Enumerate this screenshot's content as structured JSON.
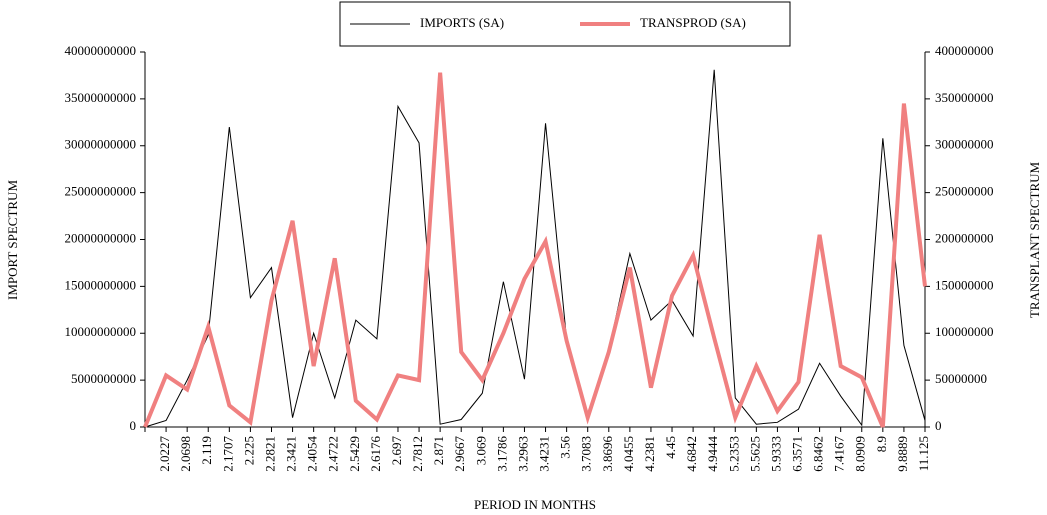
{
  "chart_data": {
    "type": "line",
    "x_label": "PERIOD IN MONTHS",
    "y_label": "IMPORT SPECTRUM",
    "y2_label": "TRANSPLANT SPECTRUM",
    "categories": [
      null,
      "2.0227",
      "2.0698",
      "2.119",
      "2.1707",
      "2.225",
      "2.2821",
      "2.3421",
      "2.4054",
      "2.4722",
      "2.5429",
      "2.6176",
      "2.697",
      "2.7812",
      "2.871",
      "2.9667",
      "3.069",
      "3.1786",
      "3.2963",
      "3.4231",
      "3.56",
      "3.7083",
      "3.8696",
      "4.0455",
      "4.2381",
      "4.45",
      "4.6842",
      "4.9444",
      "5.2353",
      "5.5625",
      "5.9333",
      "6.3571",
      "6.8462",
      "7.4167",
      "8.0909",
      "8.9",
      "9.8889",
      "11.125"
    ],
    "series": [
      {
        "name": "IMPORTS (SA)",
        "color": "#000000",
        "width": 1,
        "values": [
          0,
          700000000,
          5000000000,
          9800000000,
          32000000000,
          13800000000,
          17000000000,
          1000000000,
          10000000000,
          3100000000,
          11400000000,
          9400000000,
          34200000000,
          30300000000,
          300000000,
          800000000,
          3600000000,
          15500000000,
          5100000000,
          32400000000,
          9300000000,
          900000000,
          8200000000,
          18500000000,
          11400000000,
          13500000000,
          9700000000,
          38100000000,
          3100000000,
          300000000,
          500000000,
          1900000000,
          6800000000,
          3300000000,
          200000000,
          30800000000,
          8700000000,
          700000000
        ]
      },
      {
        "name": "TRANSPROD (SA)",
        "color": "#f08080",
        "width": 4,
        "axis": "y2",
        "values": [
          0,
          55000000,
          40000000,
          107000000,
          23000000,
          5000000,
          135000000,
          220000000,
          65000000,
          180000000,
          28000000,
          8000000,
          55000000,
          50000000,
          378000000,
          80000000,
          50000000,
          100000000,
          158000000,
          198000000,
          92000000,
          10000000,
          80000000,
          170000000,
          42000000,
          140000000,
          183000000,
          95000000,
          10000000,
          65000000,
          17000000,
          48000000,
          205000000,
          65000000,
          53000000,
          0,
          345000000,
          150000000
        ]
      }
    ],
    "ylim": [
      0,
      40000000000
    ],
    "yticks": [
      0,
      5000000000,
      10000000000,
      15000000000,
      20000000000,
      25000000000,
      30000000000,
      35000000000,
      40000000000
    ],
    "y2lim": [
      0,
      400000000
    ],
    "y2ticks": [
      0,
      50000000,
      100000000,
      150000000,
      200000000,
      250000000,
      300000000,
      350000000,
      400000000
    ],
    "grid": false,
    "legend": "top"
  }
}
